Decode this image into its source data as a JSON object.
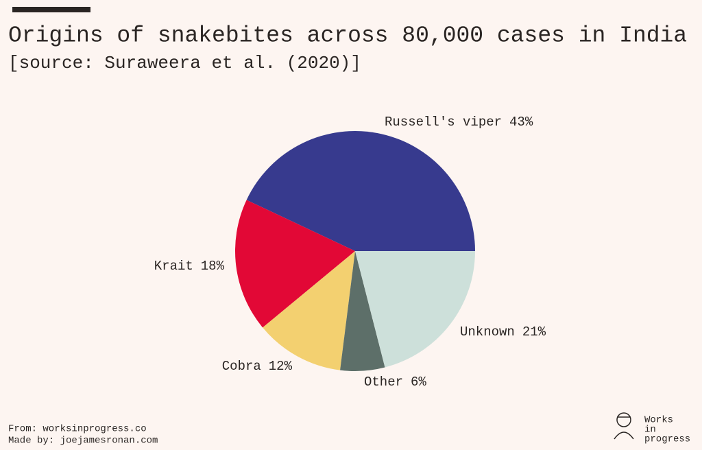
{
  "chart_data": {
    "type": "pie",
    "title": "Origins of snakebites across 80,000 cases in India",
    "subtitle": "[source: Suraweera et al. (2020)]",
    "categories": [
      "Russell's viper",
      "Krait",
      "Cobra",
      "Other",
      "Unknown"
    ],
    "values": [
      43,
      18,
      12,
      6,
      21
    ],
    "value_labels": [
      "43%",
      "18%",
      "12%",
      "6%",
      "21%"
    ],
    "colors": [
      "#373a8e",
      "#e20836",
      "#f3d070",
      "#5d6f69",
      "#cde0da"
    ]
  },
  "footer": {
    "source": "From: worksinprogress.co",
    "credit": "Made by: joejamesronan.com",
    "logo": [
      "Works",
      "in",
      "progress"
    ]
  }
}
